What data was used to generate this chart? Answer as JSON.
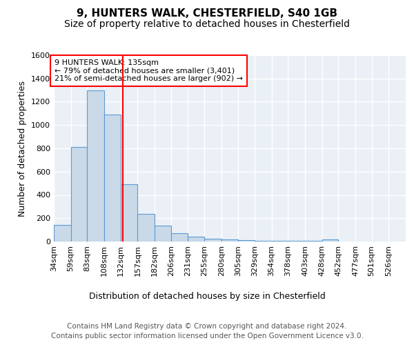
{
  "title_line1": "9, HUNTERS WALK, CHESTERFIELD, S40 1GB",
  "title_line2": "Size of property relative to detached houses in Chesterfield",
  "xlabel": "Distribution of detached houses by size in Chesterfield",
  "ylabel": "Number of detached properties",
  "bin_labels": [
    "34sqm",
    "59sqm",
    "83sqm",
    "108sqm",
    "132sqm",
    "157sqm",
    "182sqm",
    "206sqm",
    "231sqm",
    "255sqm",
    "280sqm",
    "305sqm",
    "329sqm",
    "354sqm",
    "378sqm",
    "403sqm",
    "428sqm",
    "452sqm",
    "477sqm",
    "501sqm",
    "526sqm"
  ],
  "bin_edges": [
    34,
    59,
    83,
    108,
    132,
    157,
    182,
    206,
    231,
    255,
    280,
    305,
    329,
    354,
    378,
    403,
    428,
    452,
    477,
    501,
    526,
    551
  ],
  "bar_heights": [
    140,
    810,
    1300,
    1090,
    490,
    235,
    135,
    70,
    40,
    25,
    15,
    10,
    5,
    5,
    5,
    5,
    15,
    0,
    0,
    0,
    0
  ],
  "bar_color": "#c9d9e8",
  "bar_edge_color": "#5b9bd5",
  "red_line_x": 135,
  "annotation_text": "9 HUNTERS WALK: 135sqm\n← 79% of detached houses are smaller (3,401)\n21% of semi-detached houses are larger (902) →",
  "ylim": [
    0,
    1600
  ],
  "yticks": [
    0,
    200,
    400,
    600,
    800,
    1000,
    1200,
    1400,
    1600
  ],
  "footnote_line1": "Contains HM Land Registry data © Crown copyright and database right 2024.",
  "footnote_line2": "Contains public sector information licensed under the Open Government Licence v3.0.",
  "bg_color": "#eaf0f6",
  "grid_color": "white",
  "title_fontsize": 11,
  "subtitle_fontsize": 10,
  "axis_label_fontsize": 9,
  "tick_fontsize": 8,
  "annotation_fontsize": 8,
  "footnote_fontsize": 7.5
}
